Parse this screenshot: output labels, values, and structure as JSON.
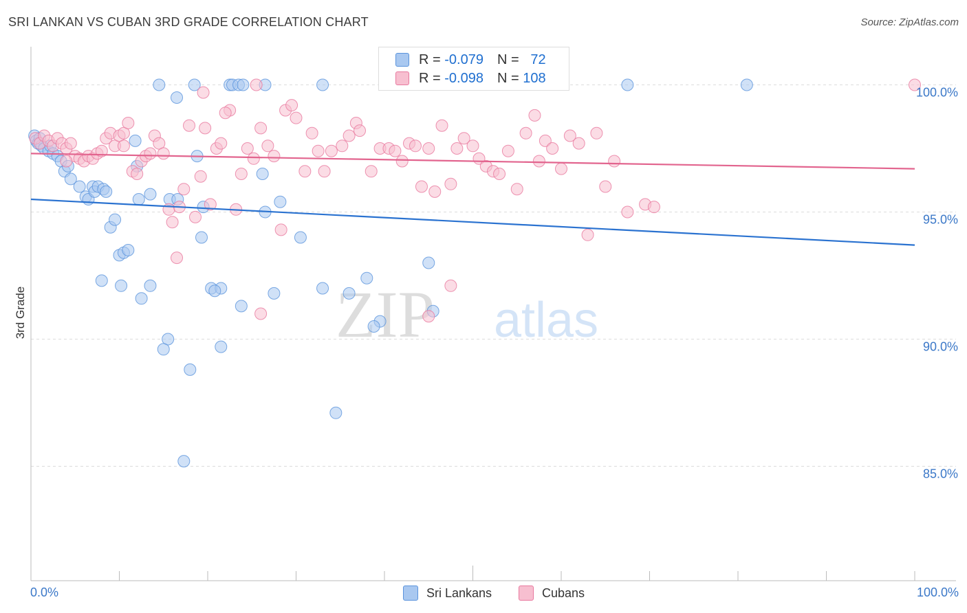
{
  "header": {
    "title": "SRI LANKAN VS CUBAN 3RD GRADE CORRELATION CHART",
    "source": "Source: ZipAtlas.com"
  },
  "watermark": {
    "zip": "ZIP",
    "atlas": "atlas"
  },
  "legend": {
    "rows": [
      {
        "r_label": "R =",
        "r_value": "-0.079",
        "n_label": "N =",
        "n_value": "72",
        "color": "#a9c8f0"
      },
      {
        "r_label": "R =",
        "r_value": "-0.098",
        "n_label": "N =",
        "n_value": "108",
        "color": "#f7bfd0"
      }
    ]
  },
  "bottom_legend": [
    {
      "label": "Sri Lankans",
      "color": "#a9c8f0"
    },
    {
      "label": "Cubans",
      "color": "#f7bfd0"
    }
  ],
  "chart_data": {
    "type": "scatter",
    "ylabel": "3rd Grade",
    "xlim": [
      0,
      100
    ],
    "ylim": [
      80.5,
      101.5
    ],
    "x_tick_labels": [
      "0.0%",
      "100.0%"
    ],
    "y_ticks": [
      {
        "value": 100,
        "label": "100.0%"
      },
      {
        "value": 95,
        "label": "95.0%"
      },
      {
        "value": 90,
        "label": "90.0%"
      },
      {
        "value": 85,
        "label": "85.0%"
      }
    ],
    "grid": "horizontal dashed",
    "series": [
      {
        "name": "Sri Lankans",
        "color": "#5a93dc",
        "fill": "#a9c8f0",
        "trend": {
          "x": [
            0,
            100
          ],
          "y": [
            95.5,
            93.7
          ]
        },
        "points": [
          [
            0.4,
            98.0
          ],
          [
            0.6,
            97.8
          ],
          [
            0.8,
            97.7
          ],
          [
            1.0,
            97.9
          ],
          [
            1.2,
            97.6
          ],
          [
            1.5,
            97.5
          ],
          [
            2.0,
            97.4
          ],
          [
            2.2,
            97.6
          ],
          [
            2.5,
            97.3
          ],
          [
            3.0,
            97.2
          ],
          [
            3.4,
            97.0
          ],
          [
            3.8,
            96.6
          ],
          [
            4.2,
            96.8
          ],
          [
            4.5,
            96.3
          ],
          [
            5.5,
            96.0
          ],
          [
            6.2,
            95.6
          ],
          [
            6.5,
            95.5
          ],
          [
            7.0,
            96.0
          ],
          [
            7.2,
            95.8
          ],
          [
            7.6,
            96.0
          ],
          [
            8.2,
            95.9
          ],
          [
            8.5,
            95.8
          ],
          [
            9.0,
            94.4
          ],
          [
            9.5,
            94.7
          ],
          [
            8.0,
            92.3
          ],
          [
            10.0,
            93.3
          ],
          [
            10.5,
            93.4
          ],
          [
            11.0,
            93.5
          ],
          [
            10.2,
            92.1
          ],
          [
            12.5,
            91.6
          ],
          [
            13.5,
            92.1
          ],
          [
            12.2,
            95.5
          ],
          [
            13.5,
            95.7
          ],
          [
            12.0,
            96.8
          ],
          [
            11.8,
            97.8
          ],
          [
            16.5,
            99.5
          ],
          [
            14.5,
            100.0
          ],
          [
            18.5,
            100.0
          ],
          [
            22.5,
            100.0
          ],
          [
            22.8,
            100.0
          ],
          [
            23.5,
            100.0
          ],
          [
            24.0,
            100.0
          ],
          [
            26.5,
            100.0
          ],
          [
            33.0,
            100.0
          ],
          [
            67.5,
            100.0
          ],
          [
            81.0,
            100.0
          ],
          [
            18.8,
            97.2
          ],
          [
            15.7,
            95.5
          ],
          [
            16.6,
            95.5
          ],
          [
            19.5,
            95.2
          ],
          [
            19.3,
            94.0
          ],
          [
            20.4,
            92.0
          ],
          [
            21.5,
            92.0
          ],
          [
            20.8,
            91.9
          ],
          [
            23.8,
            91.3
          ],
          [
            26.2,
            96.5
          ],
          [
            26.5,
            95.0
          ],
          [
            28.2,
            95.4
          ],
          [
            27.5,
            91.8
          ],
          [
            30.5,
            94.0
          ],
          [
            33.0,
            92.0
          ],
          [
            36.0,
            91.8
          ],
          [
            38.0,
            92.4
          ],
          [
            39.5,
            90.7
          ],
          [
            38.8,
            90.5
          ],
          [
            45.0,
            93.0
          ],
          [
            45.5,
            91.1
          ],
          [
            15.5,
            90.0
          ],
          [
            15.0,
            89.6
          ],
          [
            21.5,
            89.7
          ],
          [
            18.0,
            88.8
          ],
          [
            34.5,
            87.1
          ],
          [
            17.3,
            85.2
          ]
        ]
      },
      {
        "name": "Cubans",
        "color": "#e8789e",
        "fill": "#f7bfd0",
        "trend": {
          "x": [
            0,
            100
          ],
          "y": [
            97.3,
            96.7
          ]
        },
        "points": [
          [
            0.5,
            97.9
          ],
          [
            1.0,
            97.7
          ],
          [
            1.5,
            98.0
          ],
          [
            2.0,
            97.8
          ],
          [
            2.5,
            97.6
          ],
          [
            3.0,
            97.9
          ],
          [
            3.5,
            97.7
          ],
          [
            4.0,
            97.5
          ],
          [
            4.5,
            97.7
          ],
          [
            5.0,
            97.2
          ],
          [
            5.5,
            97.1
          ],
          [
            6.0,
            97.0
          ],
          [
            6.5,
            97.2
          ],
          [
            7.0,
            97.1
          ],
          [
            7.5,
            97.3
          ],
          [
            8.0,
            97.4
          ],
          [
            8.5,
            97.9
          ],
          [
            9.0,
            98.1
          ],
          [
            9.5,
            97.6
          ],
          [
            10.0,
            98.0
          ],
          [
            10.5,
            98.1
          ],
          [
            11.0,
            98.5
          ],
          [
            11.5,
            96.6
          ],
          [
            12.0,
            96.5
          ],
          [
            12.5,
            97.0
          ],
          [
            13.0,
            97.2
          ],
          [
            13.5,
            97.3
          ],
          [
            14.0,
            98.0
          ],
          [
            14.5,
            97.7
          ],
          [
            15.0,
            97.3
          ],
          [
            15.6,
            95.1
          ],
          [
            16.0,
            94.6
          ],
          [
            16.8,
            95.2
          ],
          [
            17.3,
            95.9
          ],
          [
            17.9,
            98.4
          ],
          [
            18.6,
            94.8
          ],
          [
            19.2,
            96.4
          ],
          [
            19.7,
            98.3
          ],
          [
            20.3,
            95.3
          ],
          [
            21.0,
            97.5
          ],
          [
            21.5,
            97.7
          ],
          [
            22.5,
            99.0
          ],
          [
            23.2,
            95.1
          ],
          [
            23.8,
            96.5
          ],
          [
            24.5,
            97.5
          ],
          [
            25.2,
            97.1
          ],
          [
            26.0,
            98.3
          ],
          [
            26.8,
            97.6
          ],
          [
            27.5,
            97.2
          ],
          [
            28.3,
            94.3
          ],
          [
            28.8,
            99.0
          ],
          [
            29.5,
            99.2
          ],
          [
            30.0,
            98.7
          ],
          [
            31.0,
            96.6
          ],
          [
            31.8,
            98.1
          ],
          [
            32.5,
            97.4
          ],
          [
            33.2,
            96.6
          ],
          [
            34.0,
            97.4
          ],
          [
            35.2,
            97.6
          ],
          [
            36.0,
            98.0
          ],
          [
            36.8,
            98.5
          ],
          [
            37.2,
            98.2
          ],
          [
            38.5,
            96.6
          ],
          [
            39.5,
            97.5
          ],
          [
            40.5,
            97.5
          ],
          [
            41.2,
            97.4
          ],
          [
            42.0,
            97.0
          ],
          [
            42.8,
            97.7
          ],
          [
            43.5,
            97.6
          ],
          [
            44.2,
            96.0
          ],
          [
            45.0,
            97.5
          ],
          [
            45.7,
            95.8
          ],
          [
            46.5,
            98.4
          ],
          [
            47.5,
            96.1
          ],
          [
            48.2,
            97.5
          ],
          [
            49.0,
            97.9
          ],
          [
            50.0,
            97.6
          ],
          [
            50.7,
            97.1
          ],
          [
            51.5,
            96.8
          ],
          [
            52.3,
            96.6
          ],
          [
            53.0,
            96.5
          ],
          [
            54.0,
            97.4
          ],
          [
            55.0,
            95.9
          ],
          [
            56.0,
            98.1
          ],
          [
            57.0,
            98.8
          ],
          [
            57.5,
            97.0
          ],
          [
            58.2,
            97.8
          ],
          [
            59.0,
            97.5
          ],
          [
            60.0,
            96.7
          ],
          [
            61.0,
            98.0
          ],
          [
            62.0,
            97.7
          ],
          [
            63.0,
            94.1
          ],
          [
            64.0,
            98.1
          ],
          [
            65.0,
            96.0
          ],
          [
            66.0,
            97.0
          ],
          [
            67.5,
            95.0
          ],
          [
            69.5,
            95.3
          ],
          [
            70.5,
            95.2
          ],
          [
            4.0,
            97.0
          ],
          [
            10.5,
            97.6
          ],
          [
            16.5,
            93.2
          ],
          [
            26.0,
            91.0
          ],
          [
            45.0,
            90.9
          ],
          [
            47.5,
            92.1
          ],
          [
            25.5,
            100.0
          ],
          [
            19.5,
            99.7
          ],
          [
            22.0,
            98.9
          ],
          [
            100.0,
            100.0
          ]
        ]
      }
    ]
  }
}
